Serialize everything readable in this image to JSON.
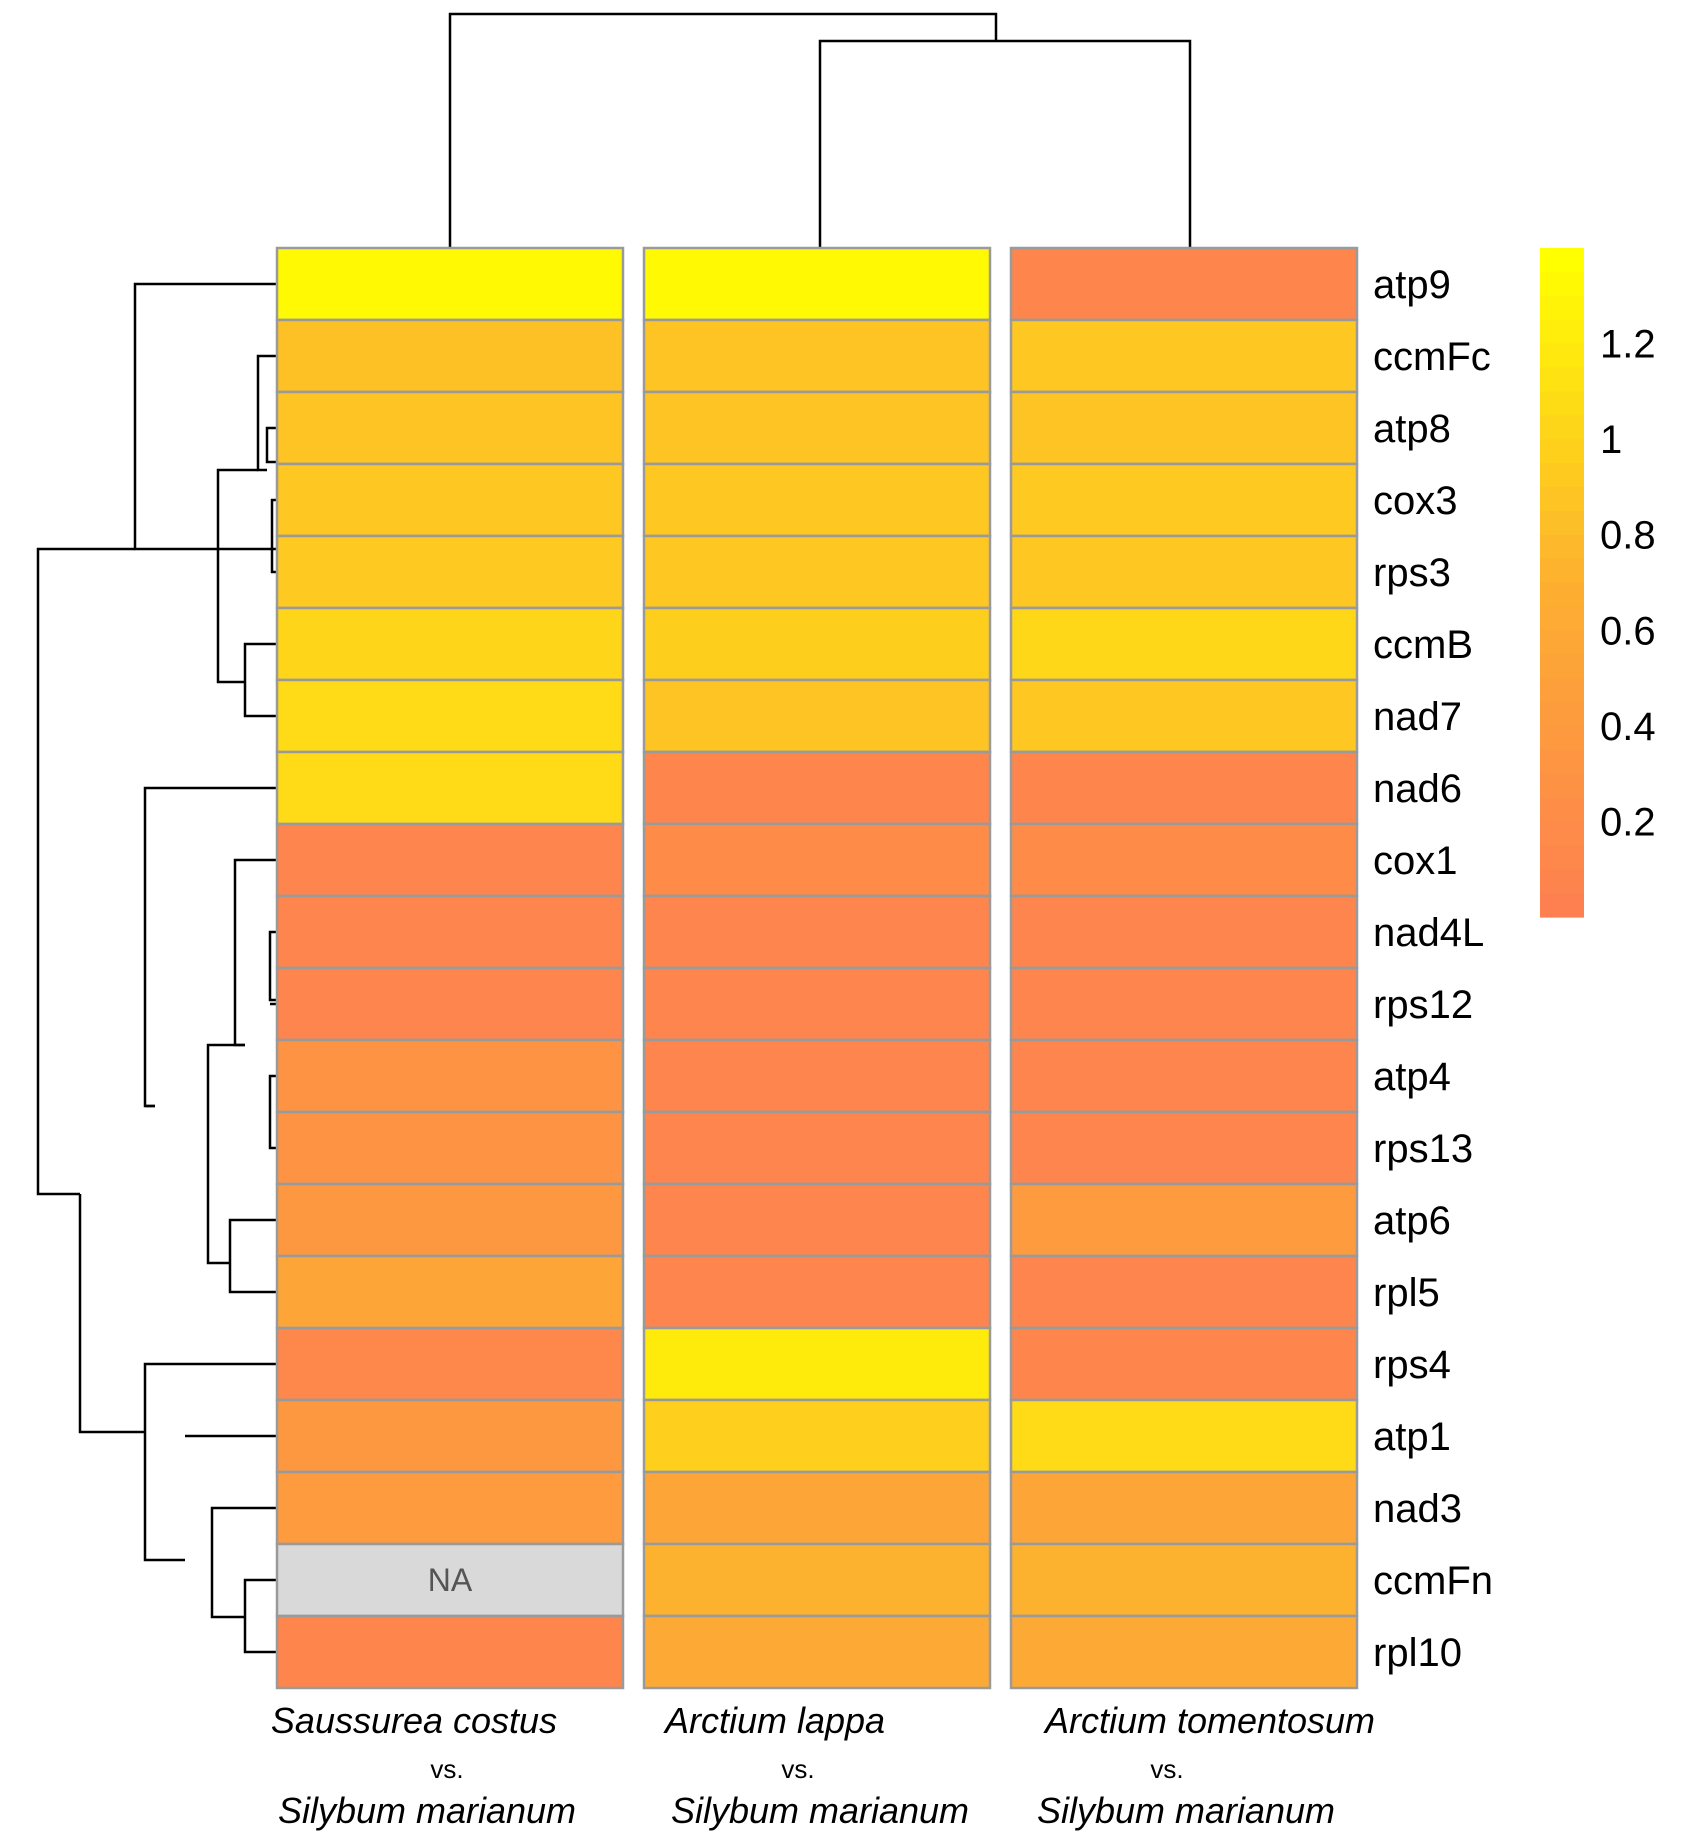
{
  "chart_data": {
    "type": "heatmap",
    "title": "",
    "columns": [
      {
        "line1": "Saussurea costus",
        "line2": "vs.",
        "line3": "Silybum marianum"
      },
      {
        "line1": "Arctium lappa",
        "line2": "vs.",
        "line3": "Silybum marianum"
      },
      {
        "line1": "Arctium tomentosum",
        "line2": "vs.",
        "line3": "Silybum marianum"
      }
    ],
    "rows": [
      "atp9",
      "ccmFc",
      "atp8",
      "cox3",
      "rps3",
      "ccmB",
      "nad7",
      "nad6",
      "cox1",
      "nad4L",
      "rps12",
      "atp4",
      "rps13",
      "atp6",
      "rpl5",
      "rps4",
      "atp1",
      "nad3",
      "ccmFn",
      "rpl10"
    ],
    "values": [
      [
        1.35,
        1.35,
        0.08
      ],
      [
        0.85,
        0.88,
        0.9
      ],
      [
        0.88,
        0.88,
        0.88
      ],
      [
        0.9,
        0.9,
        0.92
      ],
      [
        0.92,
        0.9,
        0.9
      ],
      [
        1.03,
        0.97,
        1.05
      ],
      [
        1.07,
        0.88,
        0.9
      ],
      [
        1.07,
        0.08,
        0.08
      ],
      [
        0.07,
        0.17,
        0.17
      ],
      [
        0.07,
        0.07,
        0.07
      ],
      [
        0.07,
        0.07,
        0.07
      ],
      [
        0.27,
        0.07,
        0.07
      ],
      [
        0.27,
        0.07,
        0.07
      ],
      [
        0.35,
        0.07,
        0.4
      ],
      [
        0.55,
        0.07,
        0.07
      ],
      [
        0.1,
        1.22,
        0.08
      ],
      [
        0.35,
        0.98,
        1.08
      ],
      [
        0.4,
        0.55,
        0.55
      ],
      [
        null,
        0.72,
        0.72
      ],
      [
        0.08,
        0.6,
        0.6
      ]
    ],
    "na_label": "NA",
    "na_color": "#d9d9d9",
    "legend": {
      "position": "right",
      "ticks": [
        "1.2",
        "1",
        "0.8",
        "0.6",
        "0.4",
        "0.2"
      ],
      "tick_values": [
        1.2,
        1.0,
        0.8,
        0.6,
        0.4,
        0.2
      ],
      "range": [
        0.0,
        1.4
      ]
    },
    "color_scale": {
      "low": "#fe8050",
      "mid": "#fdb030",
      "high": "#ffff00"
    },
    "cell_border_color": "#9a9a9a",
    "column_dendrogram": true,
    "row_dendrogram": true
  }
}
